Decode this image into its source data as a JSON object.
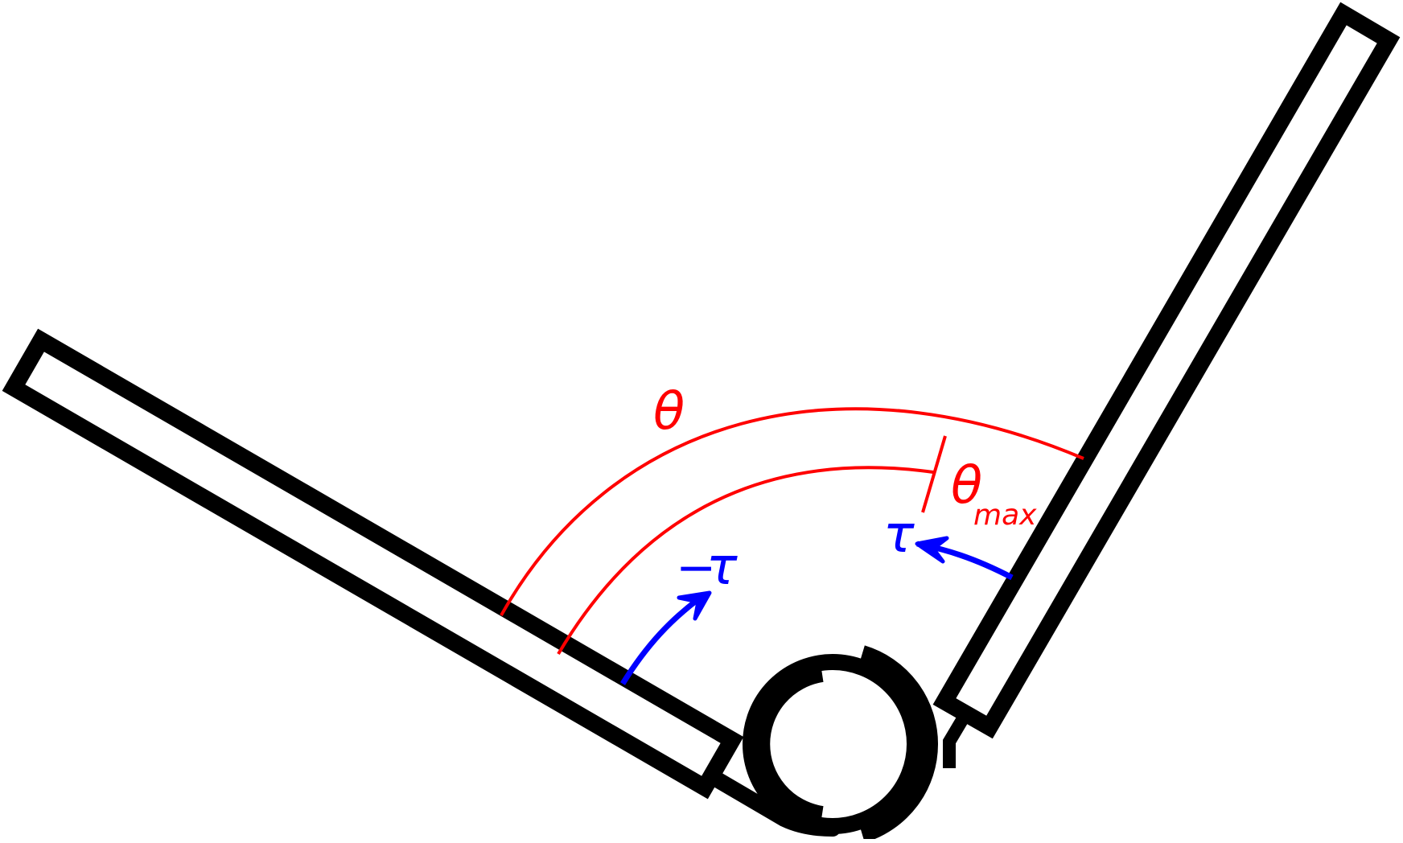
{
  "labels": {
    "theta": "θ",
    "theta_max_symbol": "θ",
    "theta_max_subscript": "max",
    "tau": "τ",
    "neg_tau_sign": "−",
    "neg_tau_symbol": "τ"
  },
  "colors": {
    "outline": "#000000",
    "angle": "#ff0000",
    "torque": "#0000ff",
    "background": "#ffffff"
  }
}
